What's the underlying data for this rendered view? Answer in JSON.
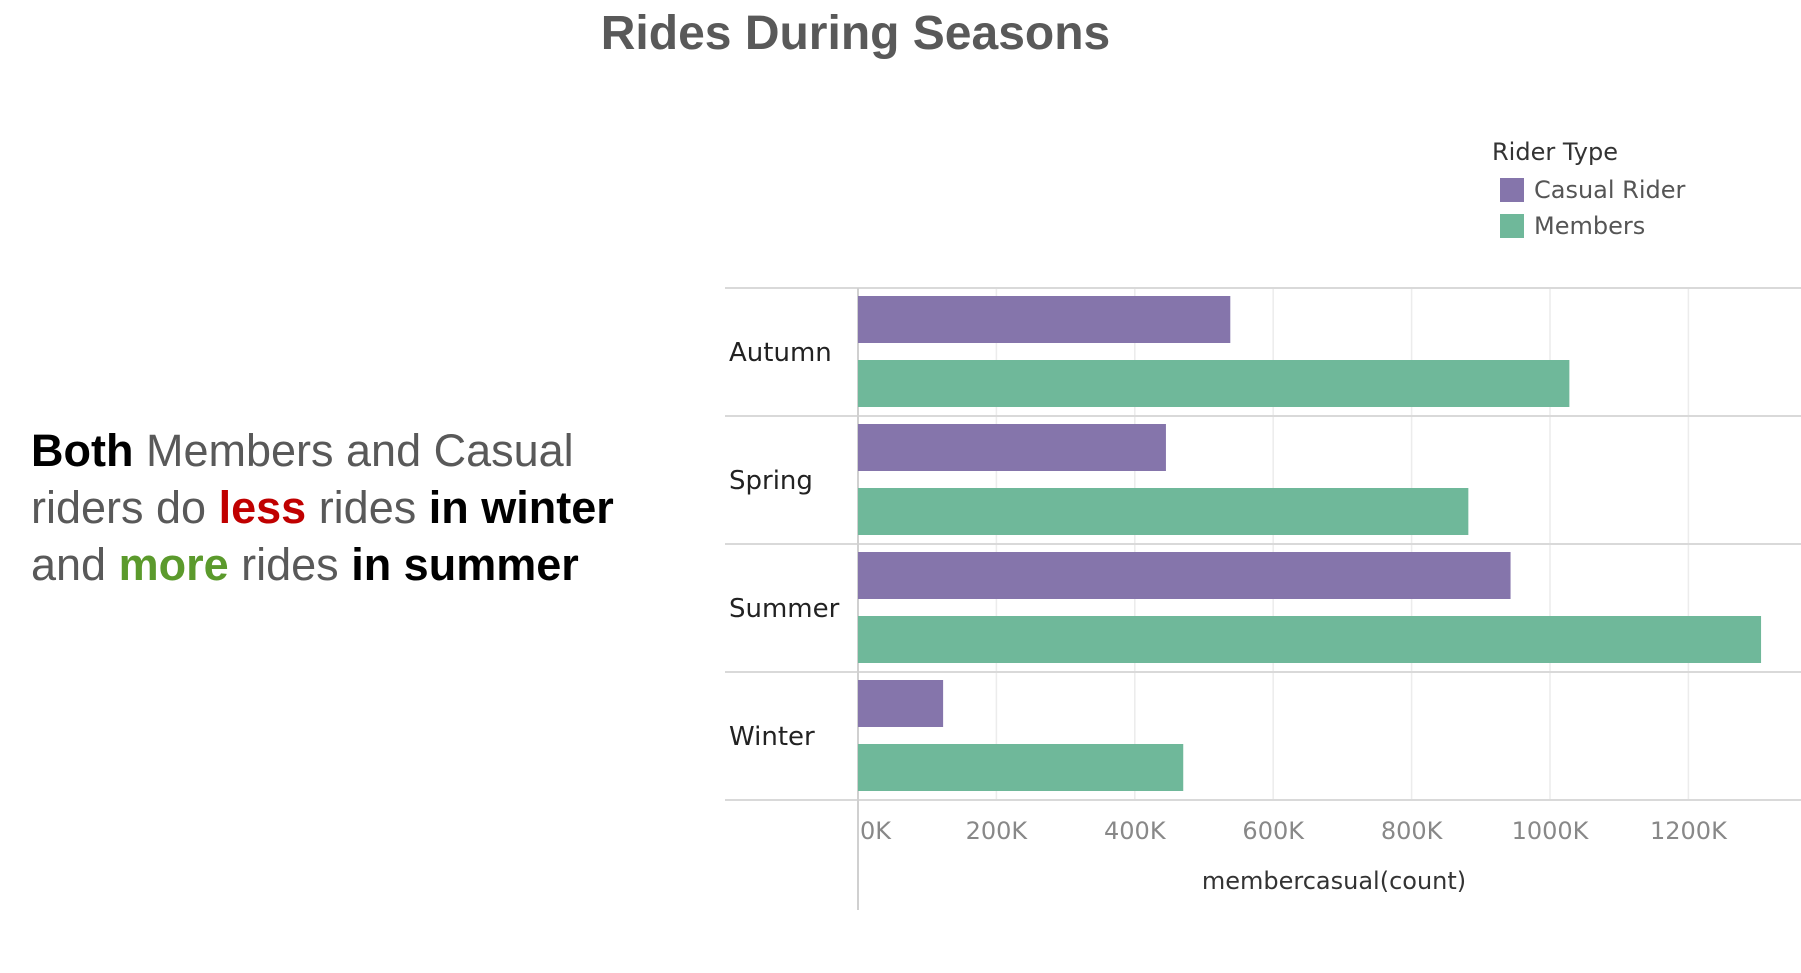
{
  "title": "Rides During Seasons",
  "annotation": {
    "t1": "Both",
    "t2": " Members and Casual riders do ",
    "t3": "less",
    "t4": " rides ",
    "t5": "in winter",
    "t6": " and ",
    "t7": "more",
    "t8": " rides ",
    "t9": "in summer"
  },
  "legend": {
    "title": "Rider Type",
    "items": [
      {
        "label": "Casual Rider",
        "color": "#8575ab"
      },
      {
        "label": "Members",
        "color": "#6fb89a"
      }
    ]
  },
  "chart_data": {
    "type": "bar",
    "orientation": "horizontal",
    "categories": [
      "Autumn",
      "Spring",
      "Summer",
      "Winter"
    ],
    "series": [
      {
        "name": "Casual Rider",
        "color": "#8575ab",
        "values": [
          538000,
          445000,
          943000,
          123000
        ]
      },
      {
        "name": "Members",
        "color": "#6fb89a",
        "values": [
          1028000,
          882000,
          1305000,
          470000
        ]
      }
    ],
    "xlabel": "membercasual(count)",
    "xlim": [
      0,
      1360000
    ],
    "xticks": [
      0,
      200000,
      400000,
      600000,
      800000,
      1000000,
      1200000
    ],
    "xtick_labels": [
      "0K",
      "200K",
      "400K",
      "600K",
      "800K",
      "1000K",
      "1200K"
    ],
    "grid": true,
    "legend_position": "top-right"
  }
}
